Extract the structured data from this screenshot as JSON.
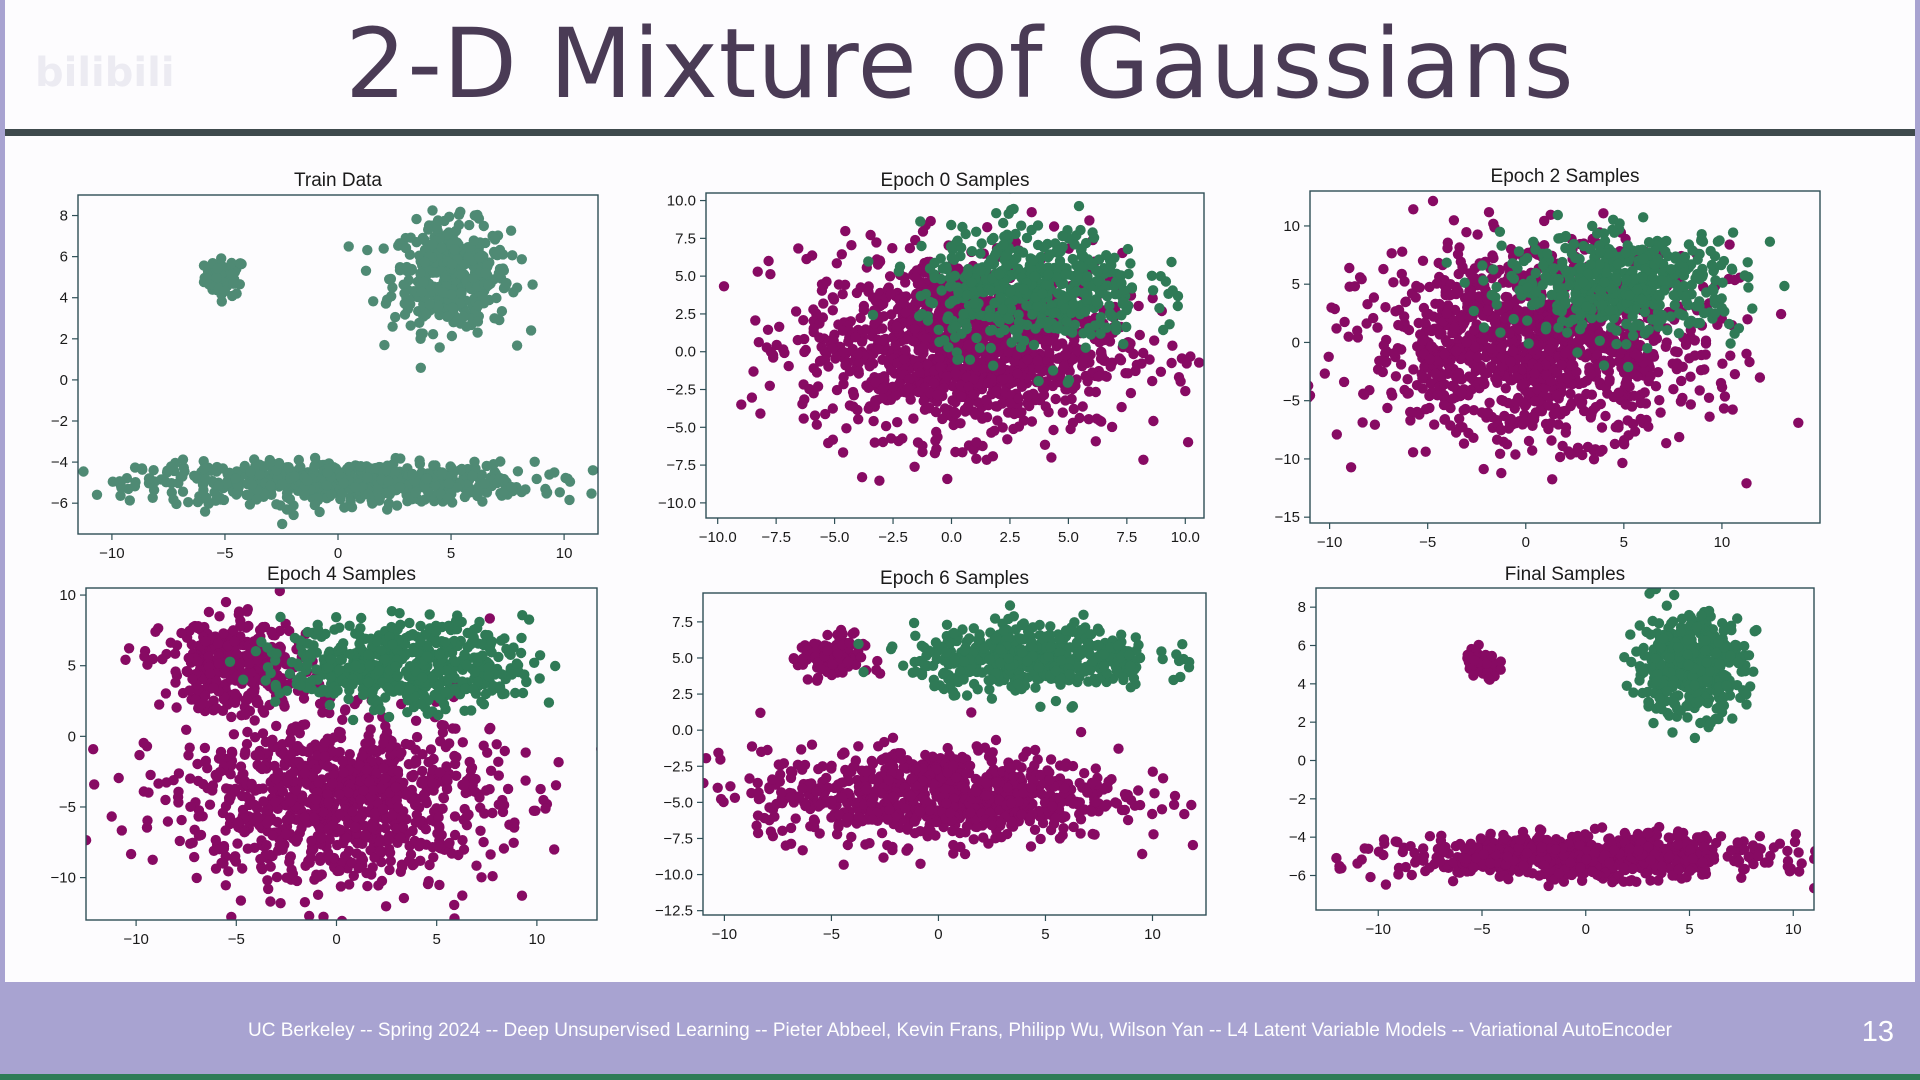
{
  "slide": {
    "title": "2-D Mixture of Gaussians",
    "watermark": "bilibili",
    "footer": "UC Berkeley -- Spring 2024 -- Deep Unsupervised Learning -- Pieter Abbeel, Kevin Frans, Philipp Wu, Wilson Yan -- L4 Latent Variable Models -- Variational AutoEncoder",
    "page_number": "13"
  },
  "colors": {
    "train": "#4f8a74",
    "component_a": "#870a63",
    "component_b": "#2f7a56",
    "axes": "#2f4f56",
    "footer_bg": "#a8a3d1"
  },
  "chart_data": [
    {
      "id": "train",
      "type": "scatter",
      "title": "Train Data",
      "xlim": [
        -11.5,
        11.5
      ],
      "ylim": [
        -7.5,
        9
      ],
      "xticks": [
        -10,
        -5,
        0,
        5,
        10
      ],
      "xtick_labels": [
        "−10",
        "−5",
        "0",
        "5",
        "10"
      ],
      "yticks": [
        -6,
        -4,
        -2,
        0,
        2,
        4,
        6,
        8
      ],
      "ytick_labels": [
        "−6",
        "−4",
        "−2",
        "0",
        "2",
        "4",
        "6",
        "8"
      ],
      "series": [
        {
          "name": "train",
          "color": "train",
          "clusters": [
            {
              "cx": -5,
              "cy": 5,
              "sx": 0.45,
              "sy": 0.45,
              "n": 60
            },
            {
              "cx": 5,
              "cy": 5,
              "sx": 1.3,
              "sy": 1.3,
              "n": 420
            },
            {
              "cx": 0,
              "cy": -5,
              "sx": 4.3,
              "sy": 0.5,
              "n": 650
            }
          ]
        }
      ]
    },
    {
      "id": "epoch0",
      "type": "scatter",
      "title": "Epoch 0 Samples",
      "xlim": [
        -10.5,
        10.8
      ],
      "ylim": [
        -11,
        10.5
      ],
      "xticks": [
        -10,
        -7.5,
        -5,
        -2.5,
        0,
        2.5,
        5,
        7.5,
        10
      ],
      "xtick_labels": [
        "−10.0",
        "−7.5",
        "−5.0",
        "−2.5",
        "0.0",
        "2.5",
        "5.0",
        "7.5",
        "10.0"
      ],
      "yticks": [
        -10,
        -7.5,
        -5,
        -2.5,
        0,
        2.5,
        5,
        7.5,
        10
      ],
      "ytick_labels": [
        "−10.0",
        "−7.5",
        "−5.0",
        "−2.5",
        "0.0",
        "2.5",
        "5.0",
        "7.5",
        "10.0"
      ],
      "series": [
        {
          "name": "component_a",
          "color": "component_a",
          "clusters": [
            {
              "cx": 0.5,
              "cy": 0.5,
              "sx": 3.4,
              "sy": 3.0,
              "n": 1300
            }
          ]
        },
        {
          "name": "component_b",
          "color": "component_b",
          "clusters": [
            {
              "cx": 3.5,
              "cy": 4.2,
              "sx": 2.4,
              "sy": 2.0,
              "n": 500
            }
          ]
        }
      ]
    },
    {
      "id": "epoch2",
      "type": "scatter",
      "title": "Epoch 2 Samples",
      "xlim": [
        -11,
        15
      ],
      "ylim": [
        -15.5,
        13
      ],
      "xticks": [
        -10,
        -5,
        0,
        5,
        10
      ],
      "xtick_labels": [
        "−10",
        "−5",
        "0",
        "5",
        "10"
      ],
      "yticks": [
        -15,
        -10,
        -5,
        0,
        5,
        10
      ],
      "ytick_labels": [
        "−15",
        "−10",
        "−5",
        "0",
        "5",
        "10"
      ],
      "series": [
        {
          "name": "component_a",
          "color": "component_a",
          "clusters": [
            {
              "cx": 0.5,
              "cy": 0,
              "sx": 4.2,
              "sy": 4.0,
              "n": 1300
            }
          ]
        },
        {
          "name": "component_b",
          "color": "component_b",
          "clusters": [
            {
              "cx": 5,
              "cy": 5,
              "sx": 3.0,
              "sy": 2.1,
              "n": 500
            }
          ]
        }
      ]
    },
    {
      "id": "epoch4",
      "type": "scatter",
      "title": "Epoch 4 Samples",
      "xlim": [
        -12.5,
        13
      ],
      "ylim": [
        -13,
        10.5
      ],
      "xticks": [
        -10,
        -5,
        0,
        5,
        10
      ],
      "xtick_labels": [
        "−10",
        "−5",
        "0",
        "5",
        "10"
      ],
      "yticks": [
        -10,
        -5,
        0,
        5,
        10
      ],
      "ytick_labels": [
        "−10",
        "−5",
        "0",
        "5",
        "10"
      ],
      "series": [
        {
          "name": "component_a",
          "color": "component_a",
          "clusters": [
            {
              "cx": -5,
              "cy": 5,
              "sx": 1.8,
              "sy": 1.6,
              "n": 350
            },
            {
              "cx": 0,
              "cy": -4.5,
              "sx": 4.0,
              "sy": 3.0,
              "n": 1000
            }
          ]
        },
        {
          "name": "component_b",
          "color": "component_b",
          "clusters": [
            {
              "cx": 3.5,
              "cy": 5,
              "sx": 3.0,
              "sy": 1.5,
              "n": 550
            }
          ]
        }
      ]
    },
    {
      "id": "epoch6",
      "type": "scatter",
      "title": "Epoch 6 Samples",
      "xlim": [
        -11,
        12.5
      ],
      "ylim": [
        -12.8,
        9.5
      ],
      "xticks": [
        -10,
        -5,
        0,
        5,
        10
      ],
      "xtick_labels": [
        "−10",
        "−5",
        "0",
        "5",
        "10"
      ],
      "yticks": [
        -12.5,
        -10,
        -7.5,
        -5,
        -2.5,
        0,
        2.5,
        5,
        7.5
      ],
      "ytick_labels": [
        "−12.5",
        "−10.0",
        "−7.5",
        "−5.0",
        "−2.5",
        "0.0",
        "2.5",
        "5.0",
        "7.5"
      ],
      "series": [
        {
          "name": "component_a",
          "color": "component_a",
          "clusters": [
            {
              "cx": -5,
              "cy": 5,
              "sx": 0.75,
              "sy": 0.8,
              "n": 130
            },
            {
              "cx": 0,
              "cy": -4.5,
              "sx": 4.2,
              "sy": 1.6,
              "n": 850
            }
          ]
        },
        {
          "name": "component_b",
          "color": "component_b",
          "clusters": [
            {
              "cx": 4.5,
              "cy": 5,
              "sx": 2.8,
              "sy": 1.1,
              "n": 500
            }
          ]
        }
      ]
    },
    {
      "id": "final",
      "type": "scatter",
      "title": "Final Samples",
      "xlim": [
        -13,
        11
      ],
      "ylim": [
        -7.8,
        9
      ],
      "xticks": [
        -10,
        -5,
        0,
        5,
        10
      ],
      "xtick_labels": [
        "−10",
        "−5",
        "0",
        "5",
        "10"
      ],
      "yticks": [
        -6,
        -4,
        -2,
        0,
        2,
        4,
        6,
        8
      ],
      "ytick_labels": [
        "−6",
        "−4",
        "−2",
        "0",
        "2",
        "4",
        "6",
        "8"
      ],
      "series": [
        {
          "name": "component_a",
          "color": "component_a",
          "clusters": [
            {
              "cx": -5,
              "cy": 5,
              "sx": 0.4,
              "sy": 0.4,
              "n": 70
            },
            {
              "cx": 0,
              "cy": -5,
              "sx": 4.3,
              "sy": 0.55,
              "n": 750
            }
          ]
        },
        {
          "name": "component_b",
          "color": "component_b",
          "clusters": [
            {
              "cx": 5,
              "cy": 5,
              "sx": 1.3,
              "sy": 1.3,
              "n": 450
            }
          ]
        }
      ]
    }
  ]
}
